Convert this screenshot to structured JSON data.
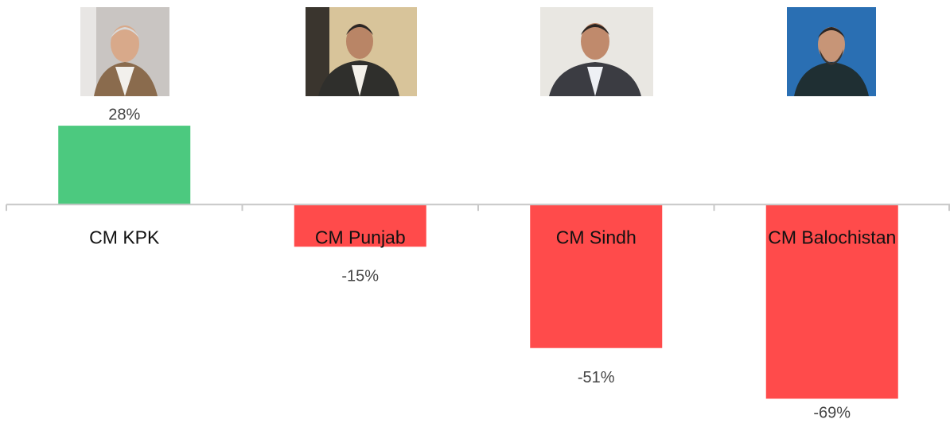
{
  "chart_data": {
    "type": "bar",
    "categories": [
      "CM KPK",
      "CM Punjab",
      "CM Sindh",
      "CM Balochistan"
    ],
    "values": [
      28,
      -15,
      -51,
      -69
    ],
    "value_labels": [
      "28%",
      "-15%",
      "-51%",
      "-69%"
    ],
    "positive_color": "#4cc97f",
    "negative_color": "#ff4b4b",
    "ylim": [
      -70,
      30
    ]
  }
}
